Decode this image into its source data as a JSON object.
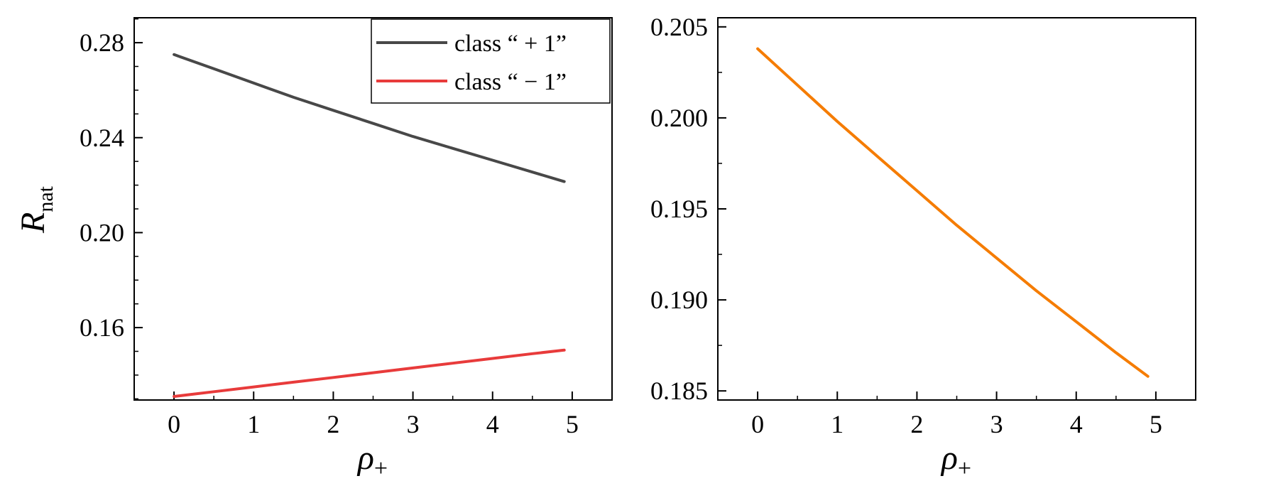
{
  "chart_data": [
    {
      "type": "line",
      "xlabel": "ρ+",
      "ylabel": "Rnat",
      "xlim": [
        -0.5,
        5.5
      ],
      "ylim": [
        0.1295,
        0.2905
      ],
      "xticks": [
        "0",
        "1",
        "2",
        "3",
        "4",
        "5"
      ],
      "yticks": [
        "0.16",
        "0.20",
        "0.24",
        "0.28"
      ],
      "grid": false,
      "legend_position": "top-right",
      "x": [
        0,
        0.5,
        1,
        1.5,
        2,
        2.5,
        3,
        3.5,
        4,
        4.5,
        4.9
      ],
      "series": [
        {
          "name": "class “ + 1”",
          "color": "#484848",
          "values": [
            0.275,
            0.269,
            0.263,
            0.257,
            0.2515,
            0.246,
            0.2405,
            0.2355,
            0.2305,
            0.2255,
            0.2215
          ]
        },
        {
          "name": "class “ − 1”",
          "color": "#e83b3b",
          "values": [
            0.131,
            0.133,
            0.135,
            0.137,
            0.139,
            0.141,
            0.143,
            0.145,
            0.147,
            0.149,
            0.1505
          ]
        }
      ]
    },
    {
      "type": "line",
      "xlabel": "ρ+",
      "xlim": [
        -0.5,
        5.5
      ],
      "ylim": [
        0.1845,
        0.2055
      ],
      "xticks": [
        "0",
        "1",
        "2",
        "3",
        "4",
        "5"
      ],
      "yticks": [
        "0.185",
        "0.190",
        "0.195",
        "0.200",
        "0.205"
      ],
      "grid": false,
      "x": [
        0,
        0.5,
        1,
        1.5,
        2,
        2.5,
        3,
        3.5,
        4,
        4.5,
        4.9
      ],
      "series": [
        {
          "color": "#f57c00",
          "values": [
            0.2038,
            0.2018,
            0.1998,
            0.1979,
            0.196,
            0.1941,
            0.1923,
            0.1905,
            0.1888,
            0.1871,
            0.1858
          ]
        }
      ]
    }
  ]
}
